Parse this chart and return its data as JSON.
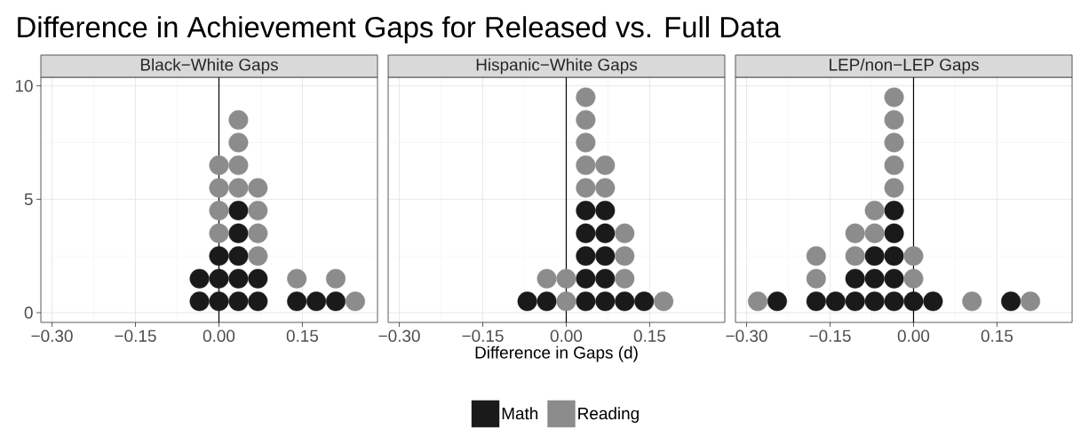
{
  "chart_data": [
    {
      "type": "scatter",
      "title": "Difference in Achievement Gaps for Released vs. Full Data",
      "subtitle": "Black−White Gaps",
      "marker": "circle",
      "grid": true,
      "xlim": [
        -0.32,
        0.285
      ],
      "ylim": [
        -0.43,
        10.38
      ],
      "xticks": [
        {
          "value": -0.3,
          "label": "−0.30"
        },
        {
          "value": -0.15,
          "label": "−0.15"
        },
        {
          "value": 0,
          "label": "0.00"
        },
        {
          "value": 0.15,
          "label": "0.15"
        }
      ],
      "yticks": [
        0,
        5,
        10
      ],
      "ref_lines": [
        {
          "axis": "x",
          "value": 0,
          "color": "#000000"
        }
      ],
      "series": [
        {
          "name": "Math",
          "color": "#1a1a1a",
          "x": [
            -0.035,
            -0.035,
            0,
            0,
            0,
            0.035,
            0.035,
            0.035,
            0.035,
            0.035,
            0.07,
            0.07,
            0.14,
            0.175,
            0.21
          ],
          "values": [
            0.5,
            1.5,
            0.5,
            1.5,
            2.5,
            0.5,
            1.5,
            2.5,
            3.5,
            4.5,
            0.5,
            1.5,
            0.5,
            0.5,
            0.5
          ]
        },
        {
          "name": "Reading",
          "color": "#8c8c8c",
          "x": [
            0,
            0,
            0,
            0,
            0.035,
            0.035,
            0.035,
            0.035,
            0.07,
            0.07,
            0.07,
            0.07,
            0.14,
            0.21,
            0.245
          ],
          "values": [
            3.5,
            4.5,
            5.5,
            6.5,
            5.5,
            6.5,
            7.5,
            8.5,
            2.5,
            3.5,
            4.5,
            5.5,
            1.5,
            1.5,
            0.5
          ]
        }
      ]
    },
    {
      "type": "scatter",
      "subtitle": "Hispanic−White Gaps",
      "xlabel": "Difference in Gaps (d)",
      "marker": "circle",
      "grid": true,
      "legend": "bottom",
      "tick_labels": "x",
      "xlim": [
        -0.32,
        0.285
      ],
      "ylim": [
        -0.43,
        10.38
      ],
      "xticks": [
        {
          "value": -0.3,
          "label": "−0.30"
        },
        {
          "value": -0.15,
          "label": "−0.15"
        },
        {
          "value": 0,
          "label": "0.00"
        },
        {
          "value": 0.15,
          "label": "0.15"
        }
      ],
      "yticks": [
        0,
        5,
        10
      ],
      "ref_lines": [
        {
          "axis": "x",
          "value": 0,
          "color": "#000000"
        }
      ],
      "series": [
        {
          "name": "Math",
          "color": "#1a1a1a",
          "x": [
            -0.07,
            -0.035,
            0.035,
            0.035,
            0.035,
            0.035,
            0.035,
            0.07,
            0.07,
            0.07,
            0.07,
            0.07,
            0.105,
            0.14
          ],
          "values": [
            0.5,
            0.5,
            0.5,
            1.5,
            2.5,
            3.5,
            4.5,
            0.5,
            1.5,
            2.5,
            3.5,
            4.5,
            0.5,
            0.5
          ]
        },
        {
          "name": "Reading",
          "color": "#8c8c8c",
          "x": [
            -0.035,
            0,
            0,
            0.035,
            0.035,
            0.035,
            0.035,
            0.035,
            0.07,
            0.07,
            0.105,
            0.105,
            0.105,
            0.175
          ],
          "values": [
            1.5,
            0.5,
            1.5,
            5.5,
            6.5,
            7.5,
            8.5,
            9.5,
            5.5,
            6.5,
            1.5,
            2.5,
            3.5,
            0.5
          ]
        }
      ]
    },
    {
      "type": "scatter",
      "subtitle": "LEP/non−LEP Gaps",
      "marker": "circle",
      "grid": true,
      "tick_labels": "x",
      "xlim": [
        -0.32,
        0.285
      ],
      "ylim": [
        -0.43,
        10.38
      ],
      "xticks": [
        {
          "value": -0.3,
          "label": "−0.30"
        },
        {
          "value": -0.15,
          "label": "−0.15"
        },
        {
          "value": 0,
          "label": "0.00"
        },
        {
          "value": 0.15,
          "label": "0.15"
        }
      ],
      "yticks": [
        0,
        5,
        10
      ],
      "ref_lines": [
        {
          "axis": "x",
          "value": 0,
          "color": "#000000"
        }
      ],
      "series": [
        {
          "name": "Math",
          "color": "#1a1a1a",
          "x": [
            -0.245,
            -0.175,
            -0.14,
            -0.105,
            -0.105,
            -0.07,
            -0.07,
            -0.07,
            -0.035,
            -0.035,
            -0.035,
            -0.035,
            -0.035,
            0,
            0.035,
            0.175
          ],
          "values": [
            0.5,
            0.5,
            0.5,
            0.5,
            1.5,
            0.5,
            1.5,
            2.5,
            0.5,
            1.5,
            2.5,
            3.5,
            4.5,
            0.5,
            0.5,
            0.5
          ]
        },
        {
          "name": "Reading",
          "color": "#8c8c8c",
          "x": [
            -0.28,
            -0.175,
            -0.175,
            -0.105,
            -0.105,
            -0.07,
            -0.07,
            -0.035,
            -0.035,
            -0.035,
            -0.035,
            -0.035,
            0,
            0,
            0.105,
            0.21
          ],
          "values": [
            0.5,
            1.5,
            2.5,
            2.5,
            3.5,
            3.5,
            4.5,
            5.5,
            6.5,
            7.5,
            8.5,
            9.5,
            1.5,
            2.5,
            0.5,
            0.5
          ]
        }
      ]
    }
  ]
}
